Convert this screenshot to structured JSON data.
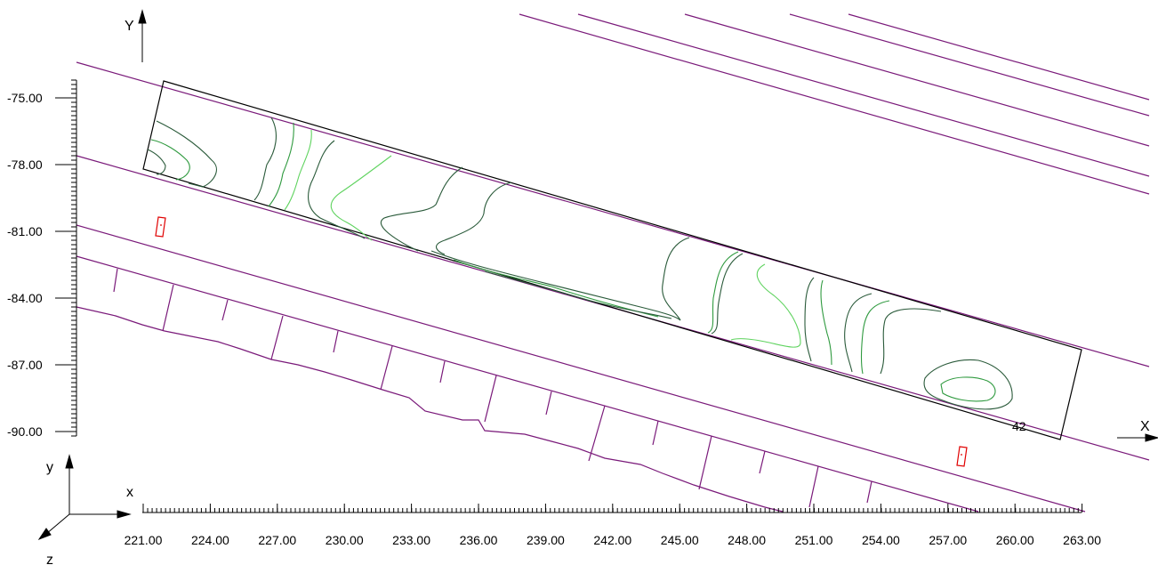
{
  "axes": {
    "x_axis_label": "X",
    "y_axis_label": "Y",
    "x_ticks": [
      "221.00",
      "224.00",
      "227.00",
      "230.00",
      "233.00",
      "236.00",
      "239.00",
      "242.00",
      "245.00",
      "248.00",
      "251.00",
      "254.00",
      "257.00",
      "260.00",
      "263.00"
    ],
    "y_ticks": [
      "-75.00",
      "-78.00",
      "-81.00",
      "-84.00",
      "-87.00",
      "-90.00"
    ]
  },
  "triad": {
    "x": "x",
    "y": "y",
    "z": "z"
  },
  "region_label": "42",
  "colors": {
    "alignment": "#7a1a7a",
    "frame": "#000000",
    "contour_dark": "#2a5a3a",
    "contour_mid": "#2f9a3f",
    "contour_light": "#5fd35f",
    "marker": "#e00000"
  }
}
